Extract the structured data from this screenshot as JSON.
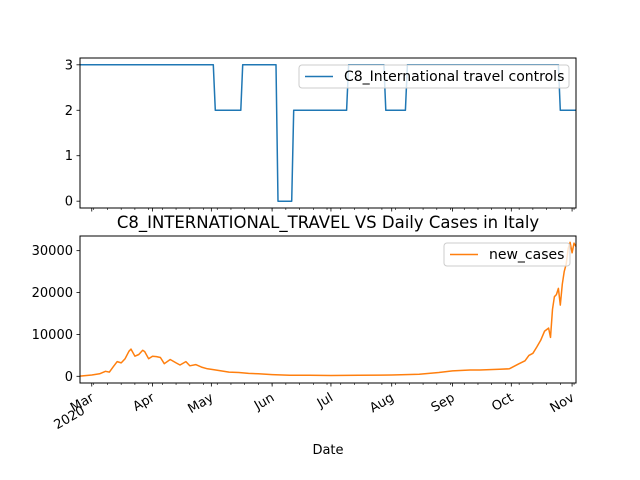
{
  "chart_data": [
    {
      "type": "line",
      "title": "",
      "xlabel": "",
      "ylabel": "",
      "ylim": [
        -0.15,
        3.15
      ],
      "yticks": [
        0,
        1,
        2,
        3
      ],
      "grid": false,
      "legend": "top-right",
      "series": [
        {
          "name": "C8_International travel controls",
          "color": "#1f77b4",
          "x": [
            "2020-02-24",
            "2020-05-02",
            "2020-05-03",
            "2020-05-16",
            "2020-05-17",
            "2020-06-03",
            "2020-06-04",
            "2020-06-11",
            "2020-06-12",
            "2020-07-09",
            "2020-07-10",
            "2020-07-28",
            "2020-07-29",
            "2020-08-08",
            "2020-08-09",
            "2020-10-25",
            "2020-10-26",
            "2020-11-03"
          ],
          "values": [
            3,
            3,
            2,
            2,
            3,
            3,
            0,
            0,
            2,
            2,
            3,
            3,
            2,
            2,
            3,
            3,
            2,
            2
          ]
        }
      ]
    },
    {
      "type": "line",
      "title": "C8_INTERNATIONAL_TRAVEL VS Daily Cases in Italy",
      "xlabel": "Date",
      "ylabel": "",
      "ylim": [
        -1600,
        33500
      ],
      "yticks": [
        0,
        10000,
        20000,
        30000
      ],
      "xlim": [
        "2020-02-24",
        "2020-11-03"
      ],
      "xticks": [
        "2020-03-01",
        "2020-04-01",
        "2020-05-01",
        "2020-06-01",
        "2020-07-01",
        "2020-08-01",
        "2020-09-01",
        "2020-10-01",
        "2020-11-01"
      ],
      "xtick_labels": [
        "Mar\n2020",
        "Apr",
        "May",
        "Jun",
        "Jul",
        "Aug",
        "Sep",
        "Oct",
        "Nov"
      ],
      "grid": false,
      "legend": "top-right",
      "series": [
        {
          "name": "new_cases",
          "color": "#ff7f0e",
          "x": [
            "2020-02-24",
            "2020-03-01",
            "2020-03-05",
            "2020-03-08",
            "2020-03-10",
            "2020-03-12",
            "2020-03-14",
            "2020-03-16",
            "2020-03-18",
            "2020-03-20",
            "2020-03-21",
            "2020-03-23",
            "2020-03-25",
            "2020-03-27",
            "2020-03-28",
            "2020-03-30",
            "2020-04-01",
            "2020-04-03",
            "2020-04-05",
            "2020-04-07",
            "2020-04-10",
            "2020-04-13",
            "2020-04-15",
            "2020-04-18",
            "2020-04-20",
            "2020-04-23",
            "2020-04-26",
            "2020-04-29",
            "2020-05-02",
            "2020-05-06",
            "2020-05-10",
            "2020-05-15",
            "2020-05-20",
            "2020-05-25",
            "2020-06-01",
            "2020-06-10",
            "2020-06-20",
            "2020-07-01",
            "2020-07-15",
            "2020-08-01",
            "2020-08-15",
            "2020-08-25",
            "2020-09-01",
            "2020-09-10",
            "2020-09-15",
            "2020-09-20",
            "2020-09-25",
            "2020-09-30",
            "2020-10-05",
            "2020-10-08",
            "2020-10-10",
            "2020-10-12",
            "2020-10-14",
            "2020-10-16",
            "2020-10-18",
            "2020-10-20",
            "2020-10-21",
            "2020-10-22",
            "2020-10-23",
            "2020-10-24",
            "2020-10-25",
            "2020-10-26",
            "2020-10-27",
            "2020-10-28",
            "2020-10-29",
            "2020-10-30",
            "2020-10-31",
            "2020-11-01",
            "2020-11-02",
            "2020-11-03"
          ],
          "values": [
            50,
            300,
            600,
            1200,
            1000,
            2300,
            3500,
            3200,
            4200,
            6000,
            6500,
            4800,
            5200,
            6200,
            5900,
            4200,
            4800,
            4700,
            4500,
            3000,
            4000,
            3200,
            2700,
            3500,
            2500,
            2800,
            2200,
            1800,
            1600,
            1300,
            1000,
            900,
            700,
            600,
            400,
            250,
            230,
            200,
            250,
            300,
            500,
            900,
            1300,
            1500,
            1500,
            1600,
            1700,
            1800,
            3000,
            3700,
            5000,
            5500,
            7000,
            8600,
            10800,
            11500,
            9300,
            16000,
            19000,
            19500,
            21000,
            17000,
            22000,
            25000,
            26800,
            30500,
            32000,
            29500,
            31800,
            31000
          ]
        }
      ]
    }
  ]
}
